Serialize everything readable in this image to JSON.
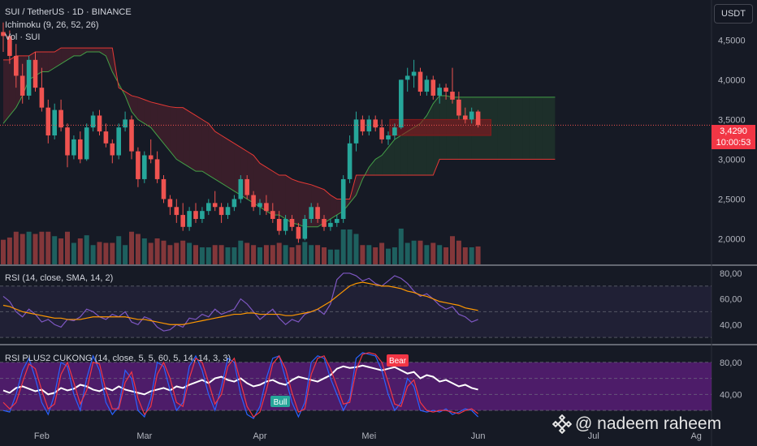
{
  "chart_data": [
    {
      "type": "candlestick",
      "title": "SUI / TetherUS · 1D · BINANCE",
      "indicators": [
        "Ichimoku (9, 26, 52, 26)",
        "Vol · SUI"
      ],
      "currency": "USDT",
      "y_ticks": [
        "4,5000",
        "4,0000",
        "3,5000",
        "3,0000",
        "2,5000",
        "2,0000"
      ],
      "y_range": [
        1.74,
        4.86
      ],
      "x_ticks": [
        "Feb",
        "Mar",
        "Apr",
        "Mei",
        "Jun",
        "Jul",
        "Ag"
      ],
      "last_price": "3,4290",
      "countdown": "10:00:53",
      "candles": [
        [
          4.6,
          4.72,
          4.35,
          4.55
        ],
        [
          4.55,
          4.62,
          4.2,
          4.3
        ],
        [
          4.3,
          4.45,
          3.9,
          4.05
        ],
        [
          4.05,
          4.2,
          3.7,
          3.8
        ],
        [
          3.8,
          4.3,
          3.75,
          4.25
        ],
        [
          4.25,
          4.35,
          3.85,
          3.9
        ],
        [
          3.9,
          4.15,
          3.6,
          3.65
        ],
        [
          3.65,
          3.75,
          3.2,
          3.3
        ],
        [
          3.3,
          3.7,
          3.25,
          3.62
        ],
        [
          3.62,
          3.75,
          3.35,
          3.4
        ],
        [
          3.4,
          3.45,
          2.9,
          3.05
        ],
        [
          3.05,
          3.3,
          3.0,
          3.25
        ],
        [
          3.25,
          3.35,
          2.95,
          3.0
        ],
        [
          3.0,
          3.45,
          2.98,
          3.4
        ],
        [
          3.4,
          3.6,
          3.35,
          3.55
        ],
        [
          3.55,
          3.62,
          3.3,
          3.35
        ],
        [
          3.35,
          3.45,
          3.15,
          3.2
        ],
        [
          3.2,
          3.25,
          2.95,
          3.05
        ],
        [
          3.05,
          3.45,
          3.0,
          3.4
        ],
        [
          3.4,
          3.6,
          3.35,
          3.5
        ],
        [
          3.5,
          3.55,
          3.0,
          3.1
        ],
        [
          3.1,
          3.15,
          2.65,
          2.75
        ],
        [
          2.75,
          3.1,
          2.7,
          3.05
        ],
        [
          3.05,
          3.25,
          2.95,
          3.0
        ],
        [
          3.0,
          3.1,
          2.7,
          2.75
        ],
        [
          2.75,
          2.8,
          2.45,
          2.5
        ],
        [
          2.5,
          2.55,
          2.3,
          2.4
        ],
        [
          2.4,
          2.5,
          2.2,
          2.3
        ],
        [
          2.3,
          2.45,
          2.1,
          2.15
        ],
        [
          2.15,
          2.4,
          2.1,
          2.35
        ],
        [
          2.35,
          2.45,
          2.2,
          2.25
        ],
        [
          2.25,
          2.4,
          2.2,
          2.35
        ],
        [
          2.35,
          2.5,
          2.3,
          2.45
        ],
        [
          2.45,
          2.6,
          2.35,
          2.4
        ],
        [
          2.4,
          2.45,
          2.2,
          2.3
        ],
        [
          2.3,
          2.45,
          2.25,
          2.4
        ],
        [
          2.4,
          2.55,
          2.35,
          2.5
        ],
        [
          2.5,
          2.8,
          2.45,
          2.75
        ],
        [
          2.75,
          2.8,
          2.5,
          2.55
        ],
        [
          2.55,
          2.6,
          2.35,
          2.4
        ],
        [
          2.4,
          2.5,
          2.3,
          2.45
        ],
        [
          2.45,
          2.55,
          2.3,
          2.35
        ],
        [
          2.35,
          2.45,
          2.2,
          2.25
        ],
        [
          2.25,
          2.35,
          2.05,
          2.1
        ],
        [
          2.1,
          2.3,
          2.05,
          2.25
        ],
        [
          2.25,
          2.3,
          2.1,
          2.15
        ],
        [
          2.15,
          2.2,
          1.95,
          2.0
        ],
        [
          2.0,
          2.3,
          1.98,
          2.25
        ],
        [
          2.25,
          2.45,
          2.2,
          2.4
        ],
        [
          2.4,
          2.45,
          2.2,
          2.25
        ],
        [
          2.25,
          2.3,
          2.1,
          2.15
        ],
        [
          2.15,
          2.25,
          2.1,
          2.2
        ],
        [
          2.2,
          2.3,
          2.15,
          2.25
        ],
        [
          2.25,
          2.8,
          2.2,
          2.75
        ],
        [
          2.75,
          3.3,
          2.7,
          3.2
        ],
        [
          3.2,
          3.6,
          3.1,
          3.5
        ],
        [
          3.5,
          3.55,
          3.3,
          3.35
        ],
        [
          3.35,
          3.55,
          3.3,
          3.5
        ],
        [
          3.5,
          3.55,
          3.35,
          3.4
        ],
        [
          3.4,
          3.5,
          3.2,
          3.25
        ],
        [
          3.25,
          3.35,
          3.18,
          3.3
        ],
        [
          3.3,
          3.45,
          3.25,
          3.4
        ],
        [
          3.4,
          4.0,
          3.38,
          4.0
        ],
        [
          4.0,
          4.15,
          3.85,
          4.05
        ],
        [
          4.05,
          4.25,
          3.9,
          4.1
        ],
        [
          4.1,
          4.15,
          3.8,
          3.85
        ],
        [
          3.85,
          4.05,
          3.8,
          4.0
        ],
        [
          4.0,
          4.05,
          3.75,
          3.8
        ],
        [
          3.8,
          3.95,
          3.7,
          3.9
        ],
        [
          3.9,
          3.95,
          3.75,
          3.85
        ],
        [
          3.85,
          4.15,
          3.7,
          3.75
        ],
        [
          3.75,
          3.85,
          3.5,
          3.55
        ],
        [
          3.55,
          3.65,
          3.45,
          3.5
        ],
        [
          3.5,
          3.65,
          3.45,
          3.6
        ],
        [
          3.6,
          3.62,
          3.4,
          3.43
        ]
      ],
      "ichimoku_cloud": {
        "span_a": [
          3.45,
          3.55,
          3.65,
          3.8,
          4.0,
          4.05,
          4.1,
          4.1,
          4.15,
          4.2,
          4.25,
          4.3,
          4.3,
          4.35,
          4.35,
          4.35,
          4.3,
          4.1,
          3.95,
          3.8,
          3.6,
          3.5,
          3.45,
          3.4,
          3.3,
          3.2,
          3.1,
          3.0,
          2.95,
          2.9,
          2.85,
          2.85,
          2.8,
          2.75,
          2.7,
          2.65,
          2.6,
          2.55,
          2.5,
          2.45,
          2.4,
          2.35,
          2.3,
          2.3,
          2.25,
          2.2,
          2.18,
          2.15,
          2.15,
          2.15,
          2.2,
          2.25,
          2.3,
          2.35,
          2.45,
          2.55,
          2.75,
          2.9,
          3.0,
          3.05,
          3.15,
          3.25,
          3.3,
          3.35,
          3.4,
          3.45,
          3.55,
          3.7,
          3.8,
          3.8,
          3.78,
          3.78,
          3.78,
          3.78,
          3.78,
          3.78,
          3.78,
          3.78,
          3.78,
          3.78,
          3.78,
          3.78,
          3.78,
          3.78,
          3.78,
          3.78,
          3.78
        ],
        "span_b": [
          4.25,
          4.25,
          4.3,
          4.3,
          4.3,
          4.35,
          4.35,
          4.35,
          4.35,
          4.4,
          4.4,
          4.4,
          4.4,
          4.4,
          4.4,
          4.4,
          4.4,
          4.4,
          3.9,
          3.85,
          3.8,
          3.78,
          3.75,
          3.72,
          3.7,
          3.68,
          3.66,
          3.65,
          3.65,
          3.6,
          3.55,
          3.5,
          3.45,
          3.35,
          3.3,
          3.25,
          3.2,
          3.15,
          3.1,
          3.05,
          2.95,
          2.9,
          2.85,
          2.8,
          2.8,
          2.75,
          2.72,
          2.7,
          2.68,
          2.65,
          2.62,
          2.55,
          2.5,
          2.5,
          2.5,
          2.8,
          2.8,
          2.8,
          2.8,
          2.8,
          2.8,
          2.8,
          2.8,
          2.8,
          2.8,
          2.8,
          2.8,
          2.8,
          3.0,
          3.0,
          3.0,
          3.0,
          3.0,
          3.0,
          3.0,
          3.0,
          3.0,
          3.0,
          3.0,
          3.0,
          3.0,
          3.0,
          3.0,
          3.0,
          3.0,
          3.0,
          3.0
        ]
      }
    },
    {
      "type": "line",
      "title": "RSI (14, close, SMA, 14, 2)",
      "y_ticks": [
        "80,00",
        "60,00",
        "40,00"
      ],
      "y_range": [
        25,
        85
      ],
      "band": [
        30,
        70
      ],
      "series": [
        {
          "color": "#7e57c2",
          "values": [
            62,
            58,
            50,
            46,
            52,
            48,
            42,
            44,
            40,
            38,
            44,
            43,
            46,
            52,
            50,
            46,
            44,
            48,
            46,
            50,
            42,
            40,
            46,
            44,
            38,
            35,
            36,
            40,
            38,
            45,
            44,
            48,
            46,
            52,
            48,
            50,
            52,
            60,
            56,
            50,
            44,
            48,
            52,
            45,
            40,
            44,
            42,
            48,
            50,
            52,
            48,
            56,
            75,
            80,
            80,
            78,
            74,
            76,
            72,
            70,
            74,
            78,
            76,
            72,
            66,
            62,
            64,
            60,
            55,
            52,
            54,
            48,
            46,
            42,
            44
          ]
        },
        {
          "color": "#ff9800",
          "values": [
            55,
            54,
            52,
            50,
            49,
            48,
            47,
            46,
            45,
            45,
            44,
            44,
            44,
            45,
            46,
            46,
            46,
            46,
            46,
            46,
            45,
            44,
            44,
            43,
            42,
            41,
            40,
            40,
            40,
            41,
            42,
            43,
            44,
            45,
            46,
            47,
            48,
            48,
            49,
            49,
            48,
            48,
            48,
            48,
            47,
            47,
            48,
            49,
            50,
            52,
            55,
            58,
            62,
            66,
            70,
            72,
            73,
            72,
            71,
            70,
            70,
            69,
            68,
            66,
            65,
            63,
            62,
            60,
            58,
            57,
            56,
            55,
            53,
            52,
            51
          ]
        }
      ]
    },
    {
      "type": "line",
      "title": "RSI PLUS2 CUKONG (14, close, 5, 5, 60, 5, 14, 14, 3, 3)",
      "y_ticks": [
        "80,00",
        "40,00"
      ],
      "y_range": [
        5,
        100
      ],
      "annotations": [
        "Bull",
        "Bear"
      ],
      "series": [
        {
          "color": "#ffffff",
          "values": [
            45,
            42,
            48,
            50,
            47,
            44,
            46,
            40,
            42,
            48,
            45,
            47,
            52,
            50,
            46,
            44,
            48,
            45,
            50,
            46,
            44,
            42,
            40,
            44,
            46,
            48,
            45,
            50,
            48,
            52,
            55,
            58,
            54,
            60,
            62,
            58,
            56,
            60,
            54,
            50,
            52,
            56,
            58,
            54,
            52,
            58,
            62,
            60,
            58,
            56,
            60,
            64,
            72,
            75,
            73,
            74,
            76,
            74,
            72,
            70,
            72,
            74,
            70,
            66,
            68,
            60,
            64,
            62,
            56,
            58,
            54,
            50,
            52,
            48,
            46
          ]
        },
        {
          "color": "#2962ff",
          "values": [
            20,
            18,
            40,
            70,
            85,
            60,
            30,
            15,
            40,
            80,
            75,
            40,
            20,
            60,
            88,
            70,
            30,
            15,
            25,
            70,
            60,
            20,
            12,
            35,
            80,
            75,
            45,
            20,
            30,
            75,
            88,
            70,
            40,
            20,
            50,
            85,
            80,
            40,
            15,
            10,
            25,
            60,
            85,
            88,
            60,
            30,
            12,
            30,
            80,
            88,
            85,
            60,
            40,
            20,
            35,
            85,
            92,
            90,
            88,
            70,
            40,
            20,
            30,
            60,
            50,
            20,
            18,
            20,
            18,
            22,
            15,
            18,
            22,
            20,
            12
          ]
        },
        {
          "color": "#f23645",
          "values": [
            30,
            22,
            30,
            55,
            78,
            72,
            45,
            22,
            28,
            65,
            80,
            55,
            28,
            45,
            80,
            78,
            45,
            22,
            22,
            55,
            68,
            35,
            15,
            25,
            65,
            80,
            60,
            30,
            25,
            60,
            85,
            80,
            55,
            28,
            40,
            75,
            85,
            55,
            25,
            12,
            18,
            45,
            78,
            88,
            72,
            42,
            18,
            22,
            65,
            85,
            88,
            72,
            50,
            28,
            30,
            70,
            90,
            92,
            90,
            80,
            55,
            28,
            25,
            50,
            58,
            30,
            20,
            18,
            20,
            20,
            18,
            16,
            20,
            22,
            16
          ]
        }
      ]
    }
  ],
  "watermark": "@ nadeem raheem"
}
